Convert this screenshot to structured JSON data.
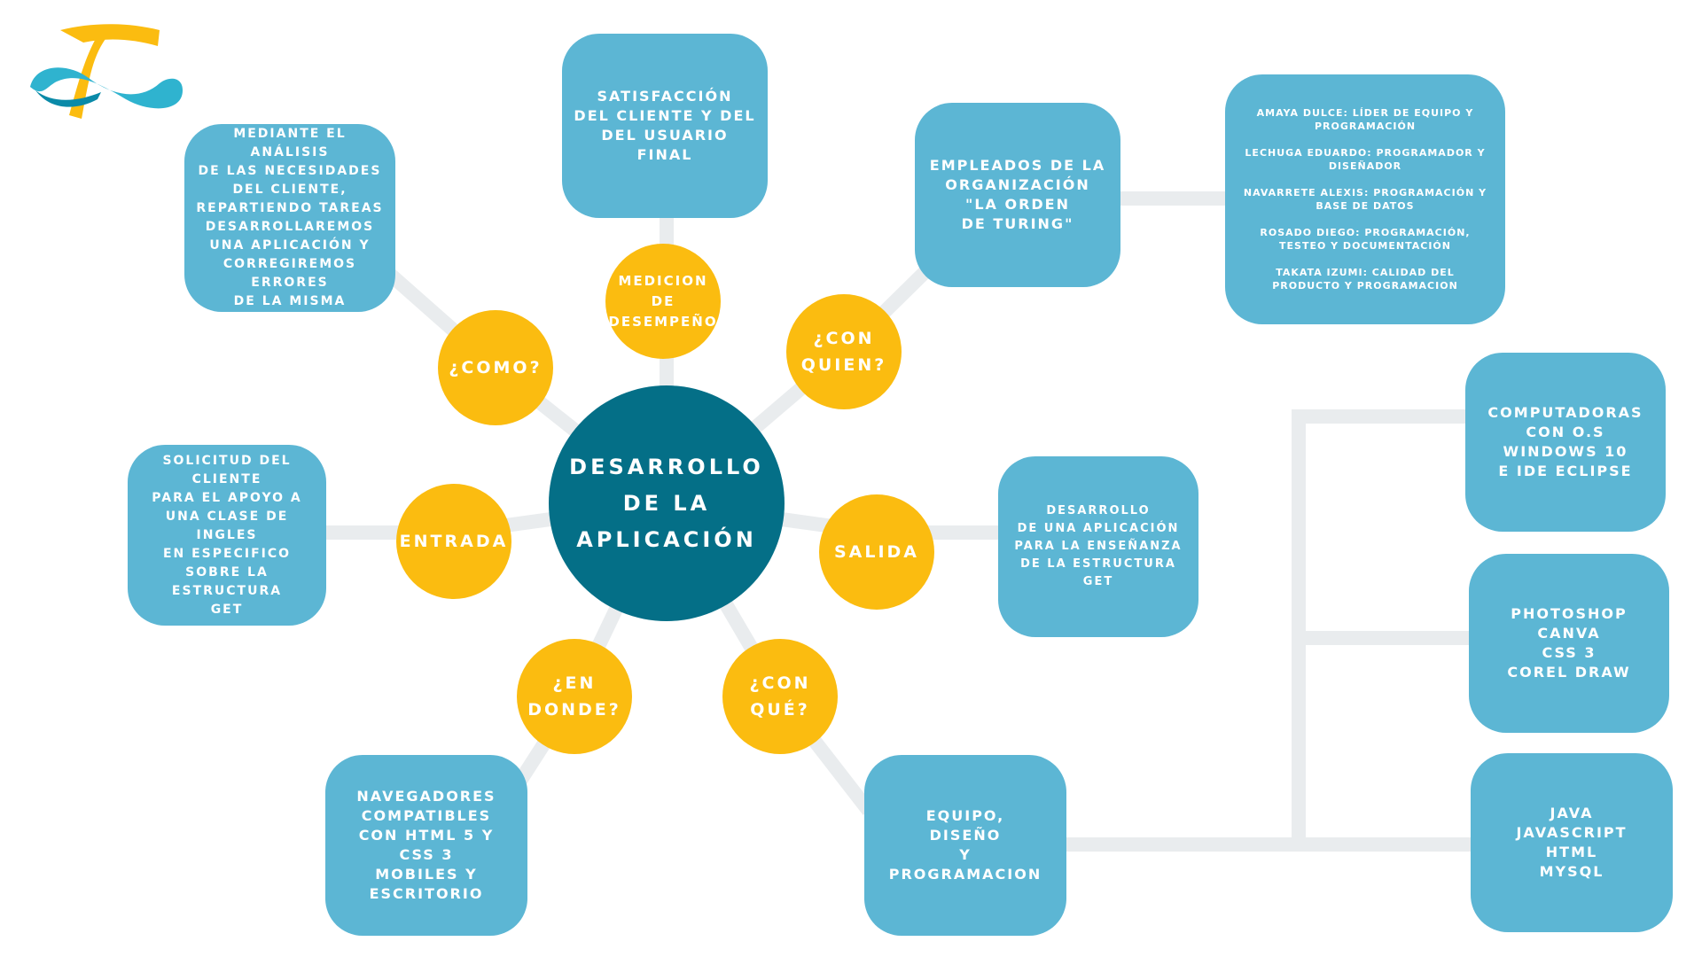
{
  "colors": {
    "box": "#5cb6d4",
    "circle": "#fbbc10",
    "center": "#046f87",
    "connector": "#e9ecee"
  },
  "logo": {
    "icon": "infinity-f-logo"
  },
  "center_node": {
    "label": "Desarrollo\nde la\naplicación"
  },
  "circles": {
    "como": "¿Como?",
    "medicion": "Medicion\nde\ndesempeño",
    "con_quien": "¿Con\nquien?",
    "entrada": "Entrada",
    "salida": "Salida",
    "en_donde": "¿En\ndonde?",
    "con_que": "¿Con\nqué?"
  },
  "boxes": {
    "como": "Mediante el análisis\nde las necesidades\ndel cliente,\nrepartiendo tareas\ndesarrollaremos\nuna aplicación y\ncorregiremos errores\nde la misma",
    "satisfaccion": "Satisfacción\ndel cliente y del\ndel usuario\nfinal",
    "empleados": "Empleados de la\norganización\n\"La orden\nde Turing\"",
    "equipo_lista": "Amaya Dulce: Líder de equipo y\nprogramación\n\nLechuga Eduardo: Programador y\nDiseñador\n\nNavarrete Alexis: Programación y\nbase de datos\n\nRosado Diego: Programación,\ntesteo y documentación\n\nTakata Izumi: Calidad del\nproducto y programacion",
    "entrada": "Solicitud del cliente\npara el apoyo a\nuna clase de\ningles\nen especifico\nsobre la\nestructura\nGET",
    "salida": "Desarrollo\nde una aplicación\npara la enseñanza\nde la estructura\nGET",
    "en_donde": "Navegadores\ncompatibles\ncon HTML 5 y\nCSS 3\nMobiles y\nescritorio",
    "con_que": "Equipo,\ndiseño\ny\nprogramacion",
    "computadoras": "Computadoras\ncon O.S\nWindows 10\ne IDE Eclipse",
    "software": "Photoshop\nCanva\nCSS 3\nCorel Draw",
    "lenguajes": "Java\nJavascript\nHTML\nMYSQL"
  }
}
